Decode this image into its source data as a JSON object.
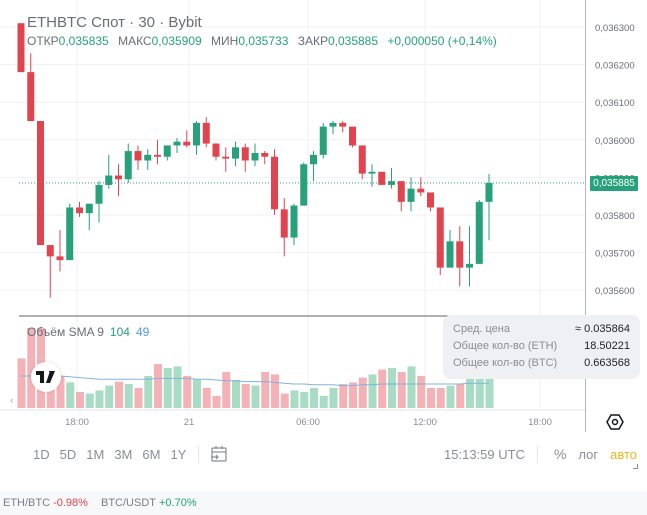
{
  "header": {
    "title": "ETHBTC Спот · 30 · Bybit",
    "ohlc": [
      {
        "label": "ОТКР",
        "value": "0,035835"
      },
      {
        "label": "МАКС",
        "value": "0,035909"
      },
      {
        "label": "МИН",
        "value": "0,035733"
      },
      {
        "label": "ЗАКР",
        "value": "0,035885"
      }
    ],
    "change": "+0,000050 (+0,14%)"
  },
  "volume_legend": {
    "label": "Объём SMA 9",
    "value1": "104",
    "value2": "49"
  },
  "tooltip": {
    "rows": [
      {
        "label": "Сред. цена",
        "value": "≈ 0.035864"
      },
      {
        "label": "Общее кол-во (ETH)",
        "value": "18.50221"
      },
      {
        "label": "Общее кол-во (BTC)",
        "value": "0.663568"
      }
    ]
  },
  "current_price_tag": "0,035885",
  "time_axis": [
    "18:00",
    "21",
    "06:00",
    "12:00",
    "18:00"
  ],
  "toolbar": {
    "ranges": [
      "1D",
      "5D",
      "1M",
      "3M",
      "6M",
      "1Y"
    ],
    "time": "15:13:59 UTC",
    "percent": "%",
    "log": "лог",
    "auto": "авто"
  },
  "ticker_bar": [
    {
      "symbol": "ETH/BTC",
      "change": "-0.98%",
      "direction": "down"
    },
    {
      "symbol": "BTC/USDT",
      "change": "+0.70%",
      "direction": "up"
    }
  ],
  "colors": {
    "up": "#26a17b",
    "down": "#e0454f",
    "up_volume": "#a8dcc5",
    "down_volume": "#f4b2b6",
    "sma": "#7fb3e0",
    "auto": "#e6b822"
  },
  "chart_data": {
    "type": "candlestick",
    "title": "ETHBTC Спот · 30 · Bybit",
    "xlabel": "",
    "ylabel": "",
    "y_ticks": [
      "0,036300",
      "0,036200",
      "0,036100",
      "0,036000",
      "0,035900",
      "0,035800",
      "0,035700",
      "0,035600"
    ],
    "ylim": [
      0.03555,
      0.03633
    ],
    "x_ticks": [
      "18:00",
      "21",
      "06:00",
      "12:00",
      "18:00"
    ],
    "grid": true,
    "candles": [
      {
        "o": 0.03631,
        "h": 0.03631,
        "l": 0.03618,
        "c": 0.03618
      },
      {
        "o": 0.03618,
        "h": 0.03623,
        "l": 0.03605,
        "c": 0.03605
      },
      {
        "o": 0.03605,
        "h": 0.03605,
        "l": 0.03572,
        "c": 0.03572
      },
      {
        "o": 0.03572,
        "h": 0.03572,
        "l": 0.03558,
        "c": 0.03569
      },
      {
        "o": 0.03569,
        "h": 0.03576,
        "l": 0.03565,
        "c": 0.03568
      },
      {
        "o": 0.03568,
        "h": 0.03583,
        "l": 0.03568,
        "c": 0.03582
      },
      {
        "o": 0.03582,
        "h": 0.035835,
        "l": 0.035795,
        "c": 0.035805
      },
      {
        "o": 0.035805,
        "h": 0.03582,
        "l": 0.03576,
        "c": 0.03583
      },
      {
        "o": 0.03583,
        "h": 0.03589,
        "l": 0.03578,
        "c": 0.03588
      },
      {
        "o": 0.03588,
        "h": 0.03596,
        "l": 0.03587,
        "c": 0.035905
      },
      {
        "o": 0.035905,
        "h": 0.035935,
        "l": 0.03585,
        "c": 0.035895
      },
      {
        "o": 0.035895,
        "h": 0.03599,
        "l": 0.035885,
        "c": 0.03597
      },
      {
        "o": 0.03597,
        "h": 0.035985,
        "l": 0.03592,
        "c": 0.035945
      },
      {
        "o": 0.035945,
        "h": 0.035975,
        "l": 0.03592,
        "c": 0.03596
      },
      {
        "o": 0.03596,
        "h": 0.036,
        "l": 0.035935,
        "c": 0.035955
      },
      {
        "o": 0.035955,
        "h": 0.035985,
        "l": 0.035945,
        "c": 0.035985
      },
      {
        "o": 0.035985,
        "h": 0.036005,
        "l": 0.035965,
        "c": 0.035995
      },
      {
        "o": 0.035995,
        "h": 0.036025,
        "l": 0.03598,
        "c": 0.035985
      },
      {
        "o": 0.035985,
        "h": 0.03605,
        "l": 0.03596,
        "c": 0.036045
      },
      {
        "o": 0.036045,
        "h": 0.03606,
        "l": 0.03598,
        "c": 0.03599
      },
      {
        "o": 0.03599,
        "h": 0.03599,
        "l": 0.035945,
        "c": 0.035955
      },
      {
        "o": 0.035955,
        "h": 0.03598,
        "l": 0.035915,
        "c": 0.03595
      },
      {
        "o": 0.03595,
        "h": 0.035995,
        "l": 0.03593,
        "c": 0.03598
      },
      {
        "o": 0.03598,
        "h": 0.03599,
        "l": 0.035915,
        "c": 0.035945
      },
      {
        "o": 0.035945,
        "h": 0.03599,
        "l": 0.03593,
        "c": 0.035965
      },
      {
        "o": 0.035965,
        "h": 0.03597,
        "l": 0.035935,
        "c": 0.035955
      },
      {
        "o": 0.035955,
        "h": 0.035975,
        "l": 0.0358,
        "c": 0.035815
      },
      {
        "o": 0.035815,
        "h": 0.035845,
        "l": 0.03569,
        "c": 0.03574
      },
      {
        "o": 0.03574,
        "h": 0.03583,
        "l": 0.03572,
        "c": 0.035825
      },
      {
        "o": 0.035825,
        "h": 0.03594,
        "l": 0.035825,
        "c": 0.035935
      },
      {
        "o": 0.035935,
        "h": 0.03597,
        "l": 0.03589,
        "c": 0.03596
      },
      {
        "o": 0.03596,
        "h": 0.036045,
        "l": 0.03595,
        "c": 0.036035
      },
      {
        "o": 0.036035,
        "h": 0.03605,
        "l": 0.036015,
        "c": 0.036045
      },
      {
        "o": 0.036045,
        "h": 0.03605,
        "l": 0.03602,
        "c": 0.036035
      },
      {
        "o": 0.036035,
        "h": 0.036035,
        "l": 0.03598,
        "c": 0.035985
      },
      {
        "o": 0.035985,
        "h": 0.035985,
        "l": 0.035895,
        "c": 0.03591
      },
      {
        "o": 0.03591,
        "h": 0.035935,
        "l": 0.035875,
        "c": 0.035915
      },
      {
        "o": 0.035915,
        "h": 0.035915,
        "l": 0.035885,
        "c": 0.03588
      },
      {
        "o": 0.03588,
        "h": 0.035925,
        "l": 0.03587,
        "c": 0.03589
      },
      {
        "o": 0.03589,
        "h": 0.03589,
        "l": 0.03581,
        "c": 0.035835
      },
      {
        "o": 0.035835,
        "h": 0.0359,
        "l": 0.03581,
        "c": 0.03587
      },
      {
        "o": 0.03587,
        "h": 0.0359,
        "l": 0.03585,
        "c": 0.03586
      },
      {
        "o": 0.03586,
        "h": 0.03586,
        "l": 0.03581,
        "c": 0.03582
      },
      {
        "o": 0.03582,
        "h": 0.03582,
        "l": 0.03564,
        "c": 0.03566
      },
      {
        "o": 0.03566,
        "h": 0.03576,
        "l": 0.03566,
        "c": 0.03573
      },
      {
        "o": 0.03573,
        "h": 0.03577,
        "l": 0.03561,
        "c": 0.03566
      },
      {
        "o": 0.03566,
        "h": 0.03577,
        "l": 0.03561,
        "c": 0.03567
      },
      {
        "o": 0.03567,
        "h": 0.03584,
        "l": 0.03567,
        "c": 0.035835
      },
      {
        "o": 0.035835,
        "h": 0.035909,
        "l": 0.035733,
        "c": 0.035885
      }
    ],
    "volume": [
      62,
      100,
      100,
      30,
      40,
      32,
      20,
      18,
      22,
      28,
      33,
      30,
      25,
      40,
      55,
      50,
      52,
      40,
      36,
      25,
      15,
      45,
      35,
      30,
      28,
      45,
      42,
      18,
      22,
      20,
      25,
      15,
      25,
      30,
      32,
      38,
      42,
      48,
      50,
      45,
      52,
      40,
      25,
      25,
      28,
      30,
      38,
      45,
      45
    ],
    "volume_sma": [
      40,
      40,
      40,
      40,
      40,
      39,
      38,
      37,
      36,
      36,
      36,
      36,
      36,
      36,
      37,
      37,
      37,
      37,
      36,
      36,
      35,
      34,
      34,
      33,
      33,
      33,
      32,
      31,
      30,
      30,
      29,
      29,
      29,
      28,
      28,
      29,
      29,
      30,
      30,
      30,
      30,
      30,
      30,
      30,
      30,
      30,
      31,
      31,
      31
    ]
  }
}
